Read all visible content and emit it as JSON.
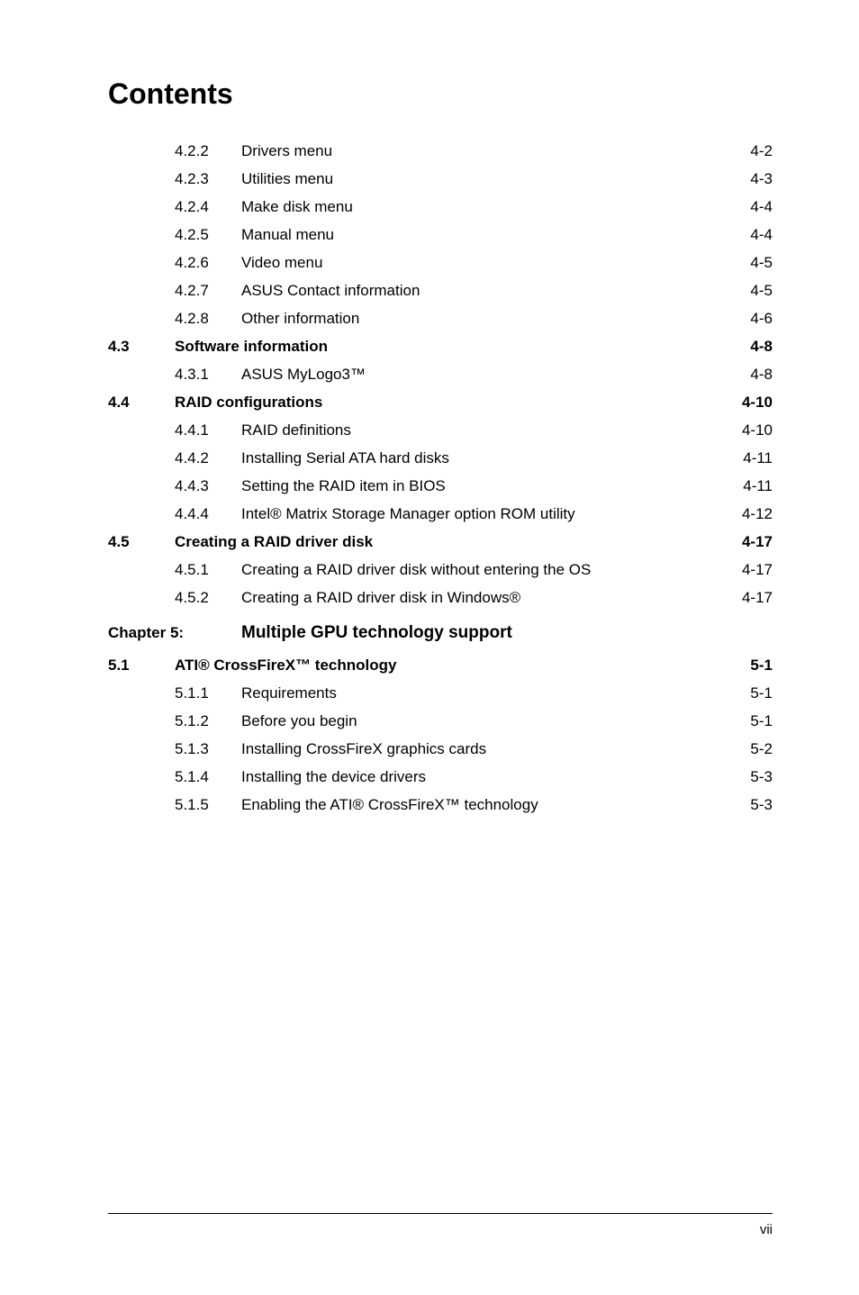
{
  "title": "Contents",
  "entries": [
    {
      "type": "sub",
      "num": "4.2.2",
      "label": "Drivers menu",
      "page": "4-2"
    },
    {
      "type": "sub",
      "num": "4.2.3",
      "label": "Utilities menu",
      "page": "4-3"
    },
    {
      "type": "sub",
      "num": "4.2.4",
      "label": "Make disk menu",
      "page": "4-4"
    },
    {
      "type": "sub",
      "num": "4.2.5",
      "label": "Manual menu",
      "page": "4-4"
    },
    {
      "type": "sub",
      "num": "4.2.6",
      "label": "Video menu",
      "page": "4-5"
    },
    {
      "type": "sub",
      "num": "4.2.7",
      "label": "ASUS Contact information",
      "page": "4-5"
    },
    {
      "type": "sub",
      "num": "4.2.8",
      "label": "Other information",
      "page": "4-6"
    },
    {
      "type": "section",
      "num": "4.3",
      "label": "Software information",
      "page": "4-8"
    },
    {
      "type": "sub",
      "num": "4.3.1",
      "label": "ASUS MyLogo3™",
      "page": "4-8"
    },
    {
      "type": "section",
      "num": "4.4",
      "label": "RAID configurations",
      "page": "4-10"
    },
    {
      "type": "sub",
      "num": "4.4.1",
      "label": "RAID definitions",
      "page": "4-10"
    },
    {
      "type": "sub",
      "num": "4.4.2",
      "label": "Installing Serial ATA hard disks",
      "page": "4-11"
    },
    {
      "type": "sub",
      "num": "4.4.3",
      "label": "Setting the RAID item in BIOS",
      "page": "4-11"
    },
    {
      "type": "sub",
      "num": "4.4.4",
      "label": "Intel® Matrix Storage Manager option ROM utility",
      "page": "4-12"
    },
    {
      "type": "section",
      "num": "4.5",
      "label": "Creating a RAID driver disk",
      "page": "4-17"
    },
    {
      "type": "sub",
      "num": "4.5.1",
      "label": "Creating a RAID driver disk without entering the OS",
      "page": "4-17"
    },
    {
      "type": "sub",
      "num": "4.5.2",
      "label": "Creating a RAID driver disk in Windows®",
      "page": "4-17"
    }
  ],
  "chapter": {
    "label": "Chapter 5:",
    "title": "Multiple GPU technology support"
  },
  "entries2": [
    {
      "type": "section",
      "num": "5.1",
      "label": "ATI® CrossFireX™ technology",
      "page": "5-1"
    },
    {
      "type": "sub",
      "num": "5.1.1",
      "label": "Requirements",
      "page": "5-1"
    },
    {
      "type": "sub",
      "num": "5.1.2",
      "label": "Before you begin",
      "page": "5-1"
    },
    {
      "type": "sub",
      "num": "5.1.3",
      "label": "Installing CrossFireX graphics cards",
      "page": "5-2"
    },
    {
      "type": "sub",
      "num": "5.1.4",
      "label": "Installing the device drivers",
      "page": "5-3"
    },
    {
      "type": "sub",
      "num": "5.1.5",
      "label": "Enabling the ATI® CrossFireX™ technology",
      "page": "5-3"
    }
  ],
  "footer_page": "vii"
}
